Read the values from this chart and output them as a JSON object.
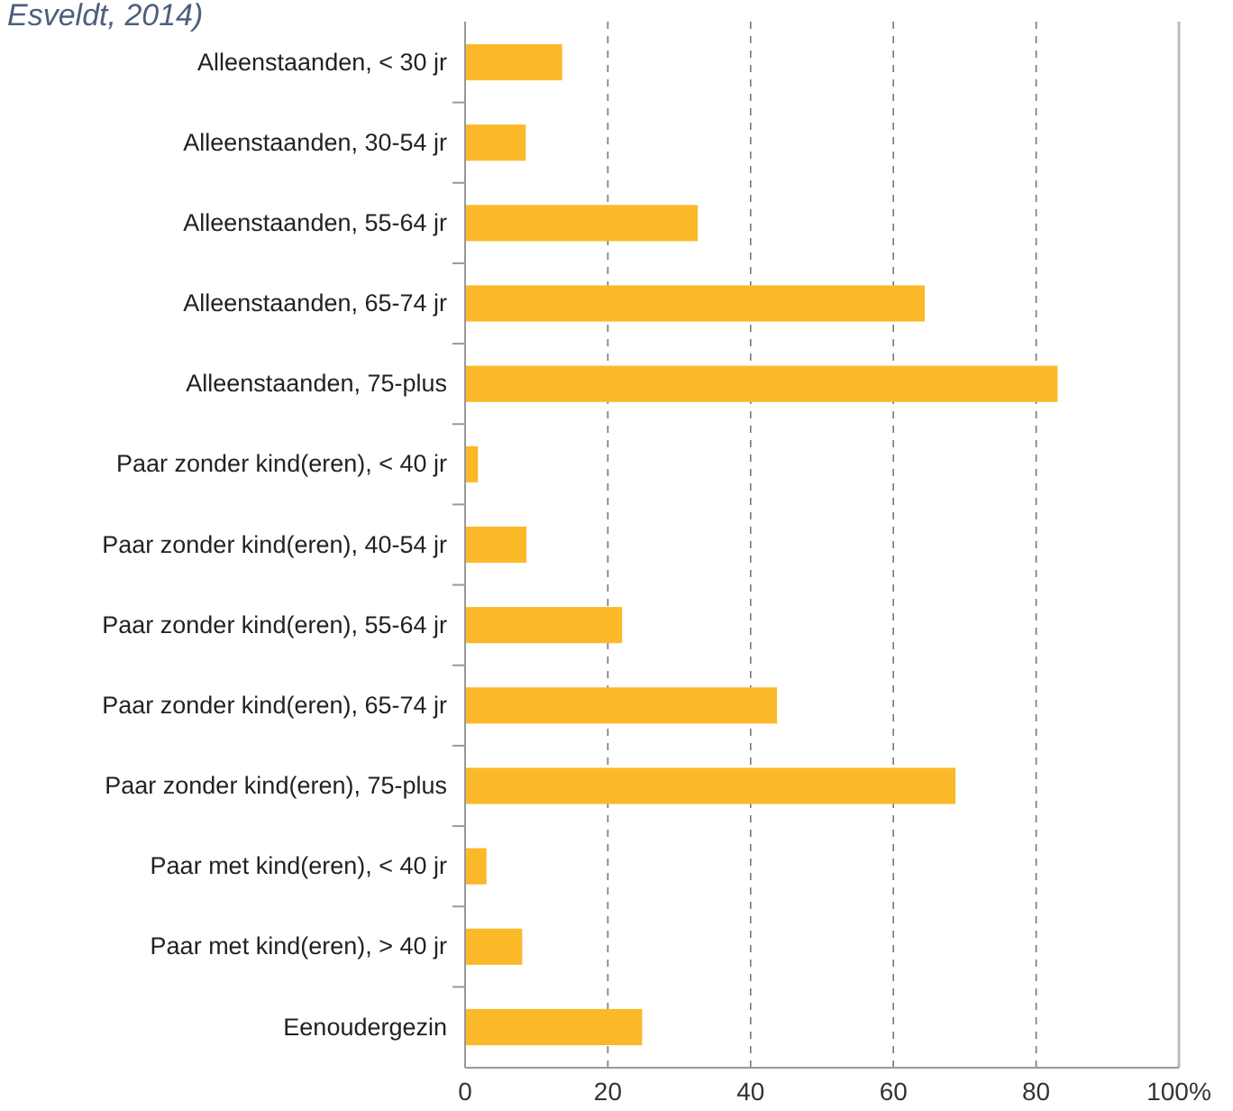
{
  "chart_data": {
    "type": "bar",
    "orientation": "horizontal",
    "annotations": [
      "Esveldt, 2014)"
    ],
    "categories": [
      "Alleenstaanden, < 30 jr",
      "Alleenstaanden, 30-54 jr",
      "Alleenstaanden, 55-64 jr",
      "Alleenstaanden, 65-74 jr",
      "Alleenstaanden, 75-plus",
      "Paar zonder kind(eren), < 40 jr",
      "Paar zonder kind(eren), 40-54 jr",
      "Paar zonder kind(eren), 55-64 jr",
      "Paar zonder kind(eren), 65-74 jr",
      "Paar zonder kind(eren), 75-plus",
      "Paar met kind(eren), < 40 jr",
      "Paar met kind(eren), > 40 jr",
      "Eenoudergezin"
    ],
    "values": [
      13.6,
      8.5,
      32.6,
      64.4,
      83,
      1.8,
      8.6,
      22,
      43.7,
      68.7,
      3,
      8,
      24.8
    ],
    "color": "#fbb829",
    "xlim": [
      0,
      100
    ],
    "xticks": [
      0,
      20,
      40,
      60,
      80,
      {
        "value": 100,
        "label": "100%"
      }
    ],
    "grid": "x"
  }
}
